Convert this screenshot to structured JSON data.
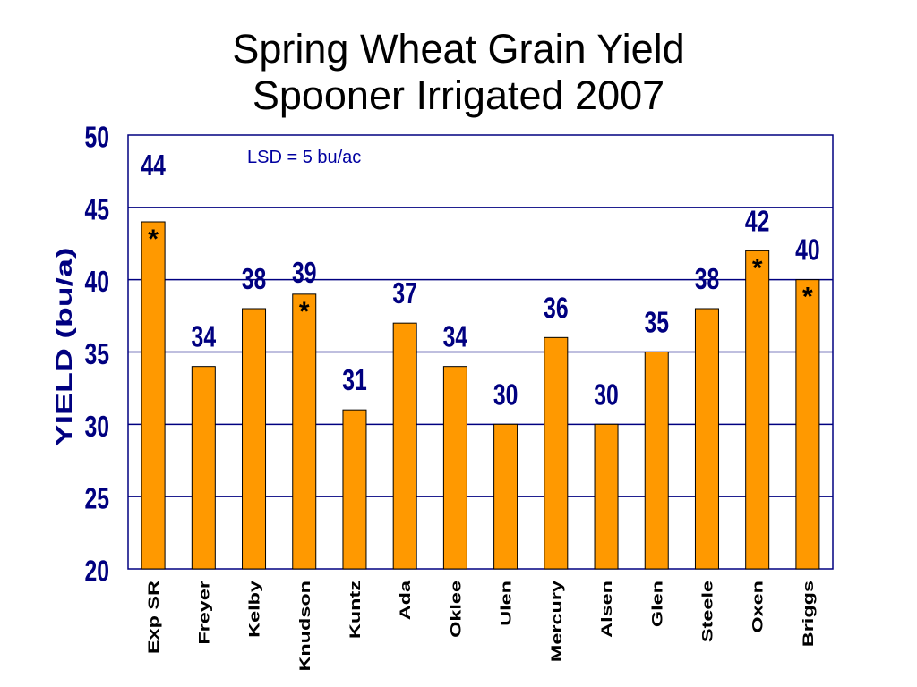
{
  "chart_data": {
    "type": "bar",
    "title": "Spring Wheat Grain Yield",
    "subtitle": "Spooner Irrigated 2007",
    "ylabel": "YIELD (bu/a)",
    "ylim": [
      20,
      50
    ],
    "yticks": [
      20,
      25,
      30,
      35,
      40,
      45,
      50
    ],
    "categories": [
      "Exp SR",
      "Freyer",
      "Kelby",
      "Knudson",
      "Kuntz",
      "Ada",
      "Oklee",
      "Ulen",
      "Mercury",
      "Alsen",
      "Glen",
      "Steele",
      "Oxen",
      "Briggs"
    ],
    "values": [
      44,
      34,
      38,
      39,
      31,
      37,
      34,
      30,
      36,
      30,
      35,
      38,
      42,
      40
    ],
    "markers": [
      "*",
      "",
      "",
      "*",
      "",
      "",
      "",
      "",
      "",
      "",
      "",
      "",
      "*",
      "*"
    ],
    "annotation": "LSD = 5 bu/ac",
    "grid": true,
    "colors": {
      "bar": "#FF9900",
      "bar_outline": "#000000",
      "grid": "#000080",
      "axis_text": "#000080",
      "annotation": "#0000A0",
      "category_text": "#000000",
      "title": "#000000"
    }
  }
}
